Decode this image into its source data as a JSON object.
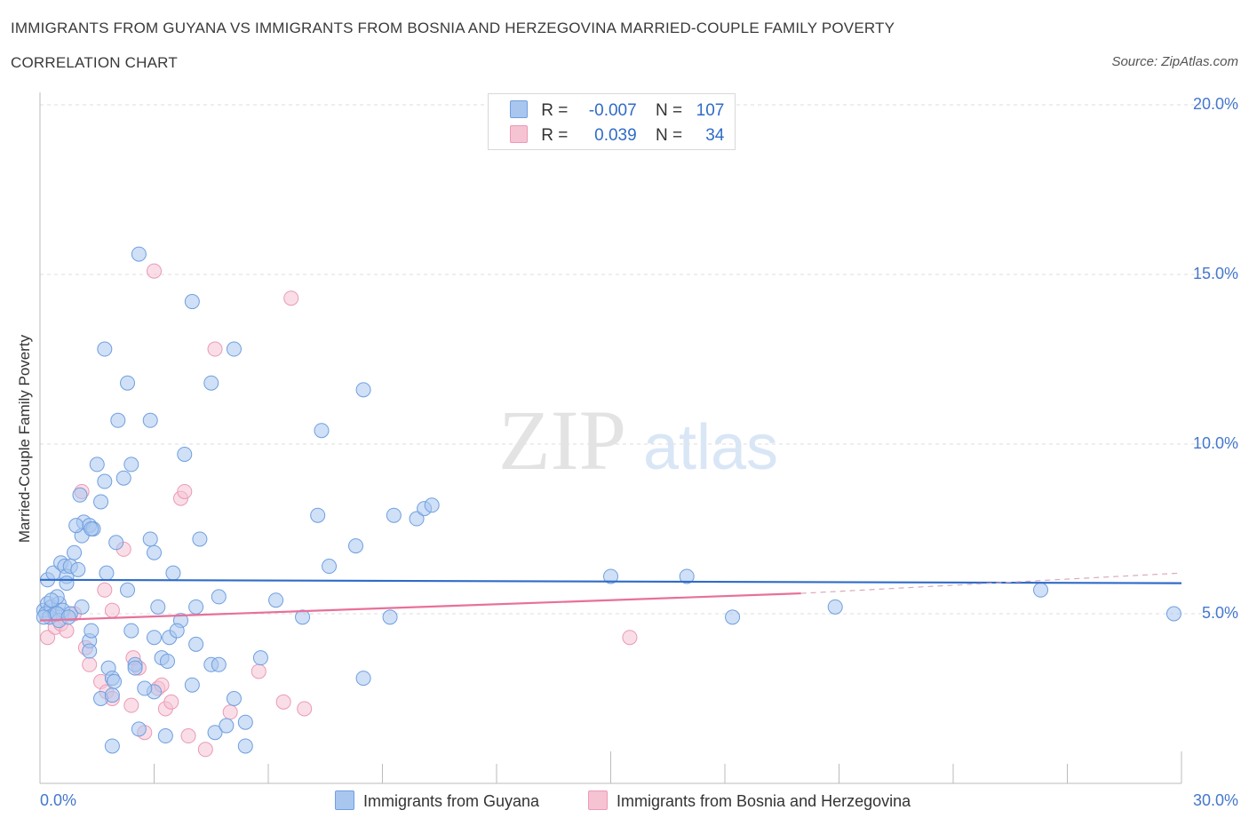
{
  "title_line1": "IMMIGRANTS FROM GUYANA VS IMMIGRANTS FROM BOSNIA AND HERZEGOVINA MARRIED-COUPLE FAMILY POVERTY",
  "title_line2": "CORRELATION CHART",
  "source": "Source: ZipAtlas.com",
  "watermark_zip": "ZIP",
  "watermark_atlas": "atlas",
  "legend": {
    "row1": {
      "r_label": "R =",
      "r_value": "-0.007",
      "n_label": "N =",
      "n_value": "107"
    },
    "row2": {
      "r_label": "R =",
      "r_value": "0.039",
      "n_label": "N =",
      "n_value": "34"
    }
  },
  "colors": {
    "guyana_fill": "#a9c6ef",
    "guyana_stroke": "#6f9fe0",
    "guyana_line": "#2f6bc8",
    "bosnia_fill": "#f6c3d3",
    "bosnia_stroke": "#eb9ab5",
    "bosnia_line": "#e8709a",
    "tick_text": "#4477cc",
    "grid": "#dcdcdc"
  },
  "chart_data": {
    "type": "scatter",
    "title": "IMMIGRANTS FROM GUYANA VS IMMIGRANTS FROM BOSNIA AND HERZEGOVINA MARRIED-COUPLE FAMILY POVERTY CORRELATION CHART",
    "xlabel": "",
    "ylabel": "Married-Couple Family Poverty",
    "xlim": [
      0,
      30
    ],
    "ylim": [
      0,
      20
    ],
    "y_ticks": [
      5,
      10,
      15,
      20
    ],
    "y_tick_labels": [
      "5.0%",
      "10.0%",
      "15.0%",
      "20.0%"
    ],
    "x_tick_labels": [
      "0.0%",
      "30.0%"
    ],
    "legend_position": "top-center",
    "series": [
      {
        "name": "Immigrants from Guyana",
        "R": -0.007,
        "N": 107,
        "trend": {
          "x0": 0,
          "y0": 6.0,
          "x1": 30,
          "y1": 5.9
        },
        "points": [
          [
            0.1,
            5.1
          ],
          [
            0.2,
            5.3
          ],
          [
            0.15,
            5.0
          ],
          [
            0.3,
            5.2
          ],
          [
            0.25,
            4.9
          ],
          [
            0.4,
            5.0
          ],
          [
            0.5,
            5.3
          ],
          [
            0.6,
            5.1
          ],
          [
            0.2,
            6.0
          ],
          [
            0.35,
            6.2
          ],
          [
            0.45,
            5.5
          ],
          [
            0.55,
            6.5
          ],
          [
            0.65,
            6.4
          ],
          [
            0.7,
            6.1
          ],
          [
            0.8,
            6.4
          ],
          [
            0.9,
            6.8
          ],
          [
            1.0,
            6.3
          ],
          [
            1.1,
            7.3
          ],
          [
            1.15,
            7.7
          ],
          [
            1.3,
            7.6
          ],
          [
            1.4,
            7.5
          ],
          [
            0.95,
            7.6
          ],
          [
            1.5,
            9.4
          ],
          [
            1.7,
            8.9
          ],
          [
            1.6,
            8.3
          ],
          [
            1.05,
            8.5
          ],
          [
            2.2,
            9.0
          ],
          [
            2.4,
            9.4
          ],
          [
            2.05,
            10.7
          ],
          [
            2.3,
            11.8
          ],
          [
            1.7,
            12.8
          ],
          [
            2.6,
            15.6
          ],
          [
            2.9,
            10.7
          ],
          [
            3.8,
            9.7
          ],
          [
            4.0,
            14.2
          ],
          [
            4.5,
            11.8
          ],
          [
            5.1,
            12.8
          ],
          [
            7.4,
            10.4
          ],
          [
            7.3,
            7.9
          ],
          [
            7.6,
            6.4
          ],
          [
            8.3,
            7.0
          ],
          [
            8.5,
            11.6
          ],
          [
            9.3,
            7.9
          ],
          [
            9.9,
            7.8
          ],
          [
            10.1,
            8.1
          ],
          [
            10.3,
            8.2
          ],
          [
            2.0,
            7.1
          ],
          [
            2.9,
            7.2
          ],
          [
            3.0,
            6.8
          ],
          [
            3.5,
            6.2
          ],
          [
            4.2,
            7.2
          ],
          [
            1.35,
            7.5
          ],
          [
            1.75,
            6.2
          ],
          [
            2.3,
            5.7
          ],
          [
            3.1,
            5.2
          ],
          [
            3.7,
            4.8
          ],
          [
            4.1,
            5.2
          ],
          [
            4.7,
            5.5
          ],
          [
            6.2,
            5.4
          ],
          [
            6.9,
            4.9
          ],
          [
            9.2,
            4.9
          ],
          [
            0.5,
            4.8
          ],
          [
            0.8,
            5.0
          ],
          [
            1.1,
            5.2
          ],
          [
            1.3,
            4.2
          ],
          [
            1.35,
            4.5
          ],
          [
            1.3,
            3.9
          ],
          [
            2.4,
            4.5
          ],
          [
            3.0,
            4.3
          ],
          [
            3.4,
            4.3
          ],
          [
            3.6,
            4.5
          ],
          [
            4.1,
            4.1
          ],
          [
            3.2,
            3.7
          ],
          [
            3.35,
            3.6
          ],
          [
            2.5,
            3.5
          ],
          [
            1.8,
            3.4
          ],
          [
            2.5,
            3.4
          ],
          [
            4.5,
            3.5
          ],
          [
            4.7,
            3.5
          ],
          [
            5.8,
            3.7
          ],
          [
            1.9,
            3.1
          ],
          [
            1.95,
            3.0
          ],
          [
            3.0,
            2.7
          ],
          [
            2.75,
            2.8
          ],
          [
            4.0,
            2.9
          ],
          [
            5.1,
            2.5
          ],
          [
            8.5,
            3.1
          ],
          [
            1.6,
            2.5
          ],
          [
            1.9,
            2.6
          ],
          [
            2.6,
            1.6
          ],
          [
            3.3,
            1.4
          ],
          [
            4.6,
            1.5
          ],
          [
            4.9,
            1.7
          ],
          [
            5.4,
            1.8
          ],
          [
            5.4,
            1.1
          ],
          [
            1.9,
            1.1
          ],
          [
            15.0,
            6.1
          ],
          [
            17.0,
            6.1
          ],
          [
            18.2,
            4.9
          ],
          [
            20.9,
            5.2
          ],
          [
            26.3,
            5.7
          ],
          [
            29.8,
            5.0
          ],
          [
            0.1,
            4.9
          ],
          [
            0.3,
            5.4
          ],
          [
            0.45,
            5.0
          ],
          [
            0.7,
            5.9
          ],
          [
            0.75,
            4.9
          ]
        ]
      },
      {
        "name": "Immigrants from Bosnia and Herzegovina",
        "R": 0.039,
        "N": 34,
        "trend": {
          "x0": 0,
          "y0": 4.8,
          "x1": 20,
          "y1": 5.6,
          "dash_to_x": 30,
          "dash_to_y": 6.2
        },
        "points": [
          [
            0.2,
            4.3
          ],
          [
            0.4,
            4.6
          ],
          [
            0.55,
            4.7
          ],
          [
            0.7,
            4.5
          ],
          [
            0.9,
            5.0
          ],
          [
            1.1,
            8.6
          ],
          [
            1.7,
            5.7
          ],
          [
            1.9,
            5.1
          ],
          [
            2.2,
            6.9
          ],
          [
            3.0,
            15.1
          ],
          [
            3.7,
            8.4
          ],
          [
            3.8,
            8.6
          ],
          [
            4.6,
            12.8
          ],
          [
            6.6,
            14.3
          ],
          [
            1.2,
            4.0
          ],
          [
            1.3,
            3.5
          ],
          [
            1.6,
            3.0
          ],
          [
            1.75,
            2.7
          ],
          [
            1.9,
            2.5
          ],
          [
            2.4,
            2.3
          ],
          [
            2.45,
            3.7
          ],
          [
            2.6,
            3.4
          ],
          [
            2.75,
            1.5
          ],
          [
            3.1,
            2.8
          ],
          [
            3.2,
            2.9
          ],
          [
            3.3,
            2.2
          ],
          [
            3.45,
            2.4
          ],
          [
            3.9,
            1.4
          ],
          [
            4.35,
            1.0
          ],
          [
            5.0,
            2.1
          ],
          [
            5.75,
            3.3
          ],
          [
            6.4,
            2.4
          ],
          [
            6.95,
            2.2
          ],
          [
            15.5,
            4.3
          ]
        ]
      }
    ]
  }
}
